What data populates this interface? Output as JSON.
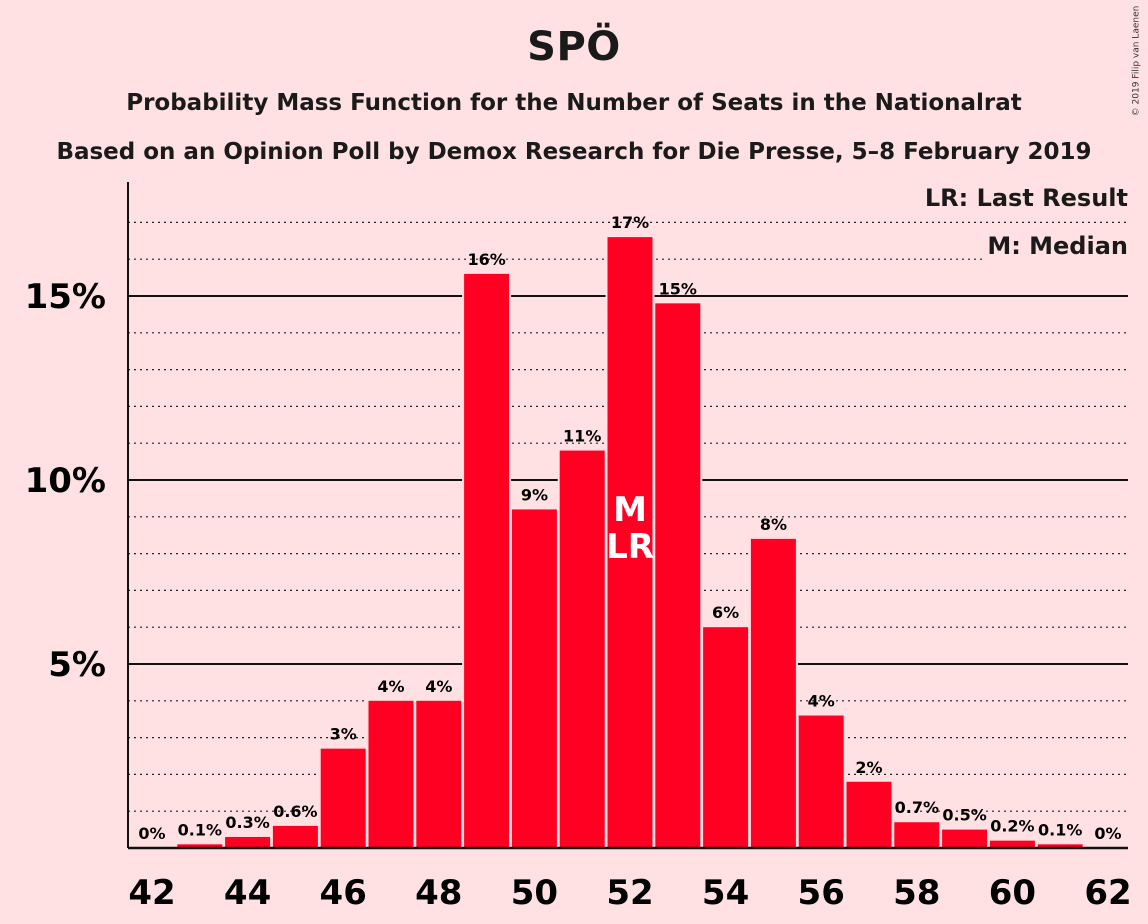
{
  "chart_data": {
    "type": "bar",
    "title": "SPÖ",
    "subtitle": "Probability Mass Function for the Number of Seats in the Nationalrat",
    "subtitle2": "Based on an Opinion Poll by Demox Research for Die Presse, 5–8 February 2019",
    "copyright": "© 2019 Filip van Laenen",
    "legend": {
      "lr": "LR: Last Result",
      "m": "M: Median",
      "position": "top-right"
    },
    "x": [
      42,
      43,
      44,
      45,
      46,
      47,
      48,
      49,
      50,
      51,
      52,
      53,
      54,
      55,
      56,
      57,
      58,
      59,
      60,
      61,
      62
    ],
    "values": [
      0,
      0.1,
      0.3,
      0.6,
      2.7,
      4.0,
      4.0,
      15.6,
      9.2,
      10.8,
      16.6,
      14.8,
      6.0,
      8.4,
      3.6,
      1.8,
      0.7,
      0.5,
      0.2,
      0.1,
      0
    ],
    "labels": [
      "0%",
      "0.1%",
      "0.3%",
      "0.6%",
      "3%",
      "4%",
      "4%",
      "16%",
      "9%",
      "11%",
      "17%",
      "15%",
      "6%",
      "8%",
      "4%",
      "2%",
      "0.7%",
      "0.5%",
      "0.2%",
      "0.1%",
      "0%"
    ],
    "xticks": [
      "42",
      "44",
      "46",
      "48",
      "50",
      "52",
      "54",
      "56",
      "58",
      "60",
      "62"
    ],
    "yticks": [
      {
        "value": 5,
        "label": "5%"
      },
      {
        "value": 10,
        "label": "10%"
      },
      {
        "value": 15,
        "label": "15%"
      }
    ],
    "ylim": [
      0,
      18
    ],
    "median_seat": 52,
    "last_result_seat": 52,
    "median_marker": "M",
    "last_result_marker": "LR",
    "bar_color": "#ff0022",
    "background": "#ffe1e3",
    "grid": true
  }
}
